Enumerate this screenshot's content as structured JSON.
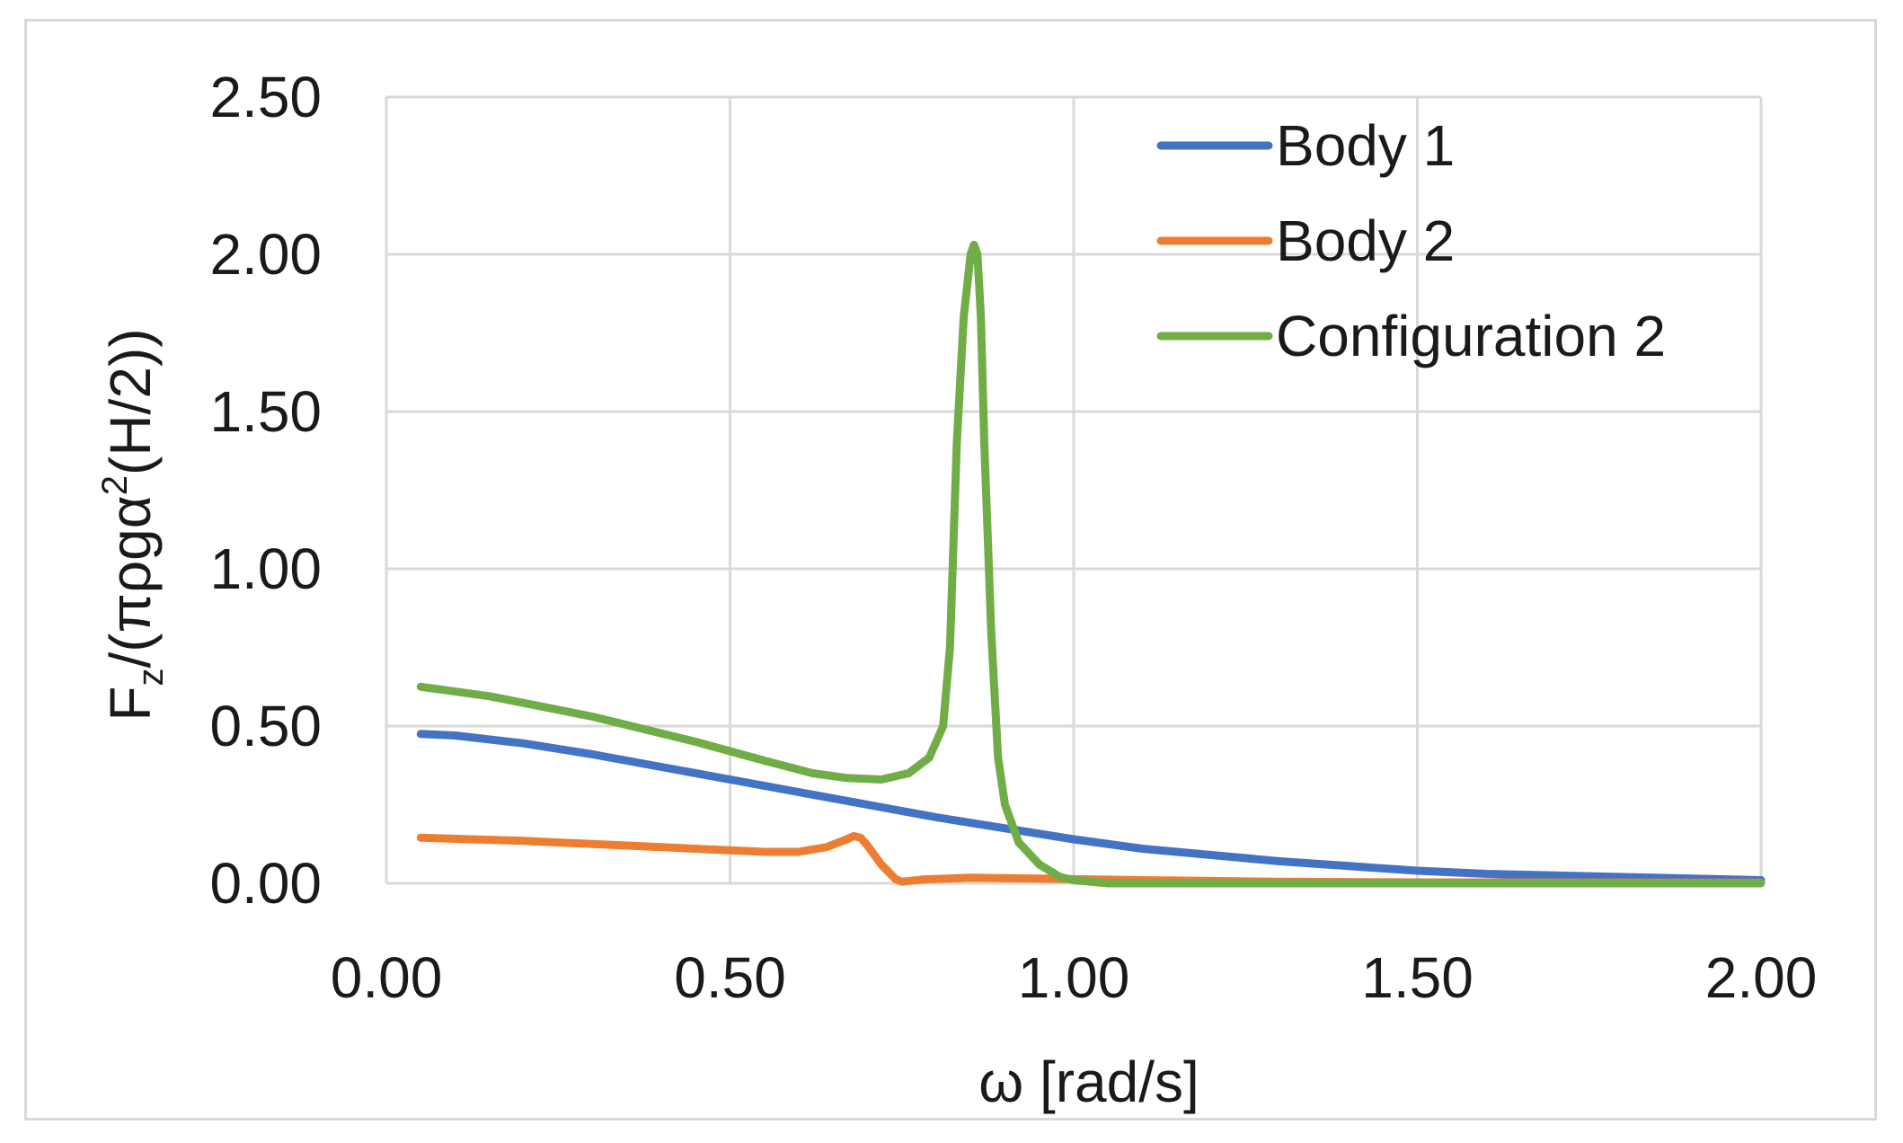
{
  "chart_data": {
    "type": "line",
    "title": "",
    "xlabel": "ω  [rad/s]",
    "ylabel_parts": [
      "F",
      "z",
      "/(πρgα",
      "2",
      "(H/2))"
    ],
    "xlim": [
      0,
      2
    ],
    "ylim": [
      0,
      2.5
    ],
    "x_ticks": [
      0,
      0.5,
      1,
      1.5,
      2
    ],
    "y_ticks": [
      0,
      0.5,
      1,
      1.5,
      2,
      2.5
    ],
    "x_tick_labels": [
      "0.00",
      "0.50",
      "1.00",
      "1.50",
      "2.00"
    ],
    "y_tick_labels": [
      "0.00",
      "0.50",
      "1.00",
      "1.50",
      "2.00",
      "2.50"
    ],
    "grid": true,
    "legend_position": "top-right",
    "series": [
      {
        "name": "Body 1",
        "color": "#4472c4",
        "x": [
          0.05,
          0.1,
          0.2,
          0.3,
          0.4,
          0.5,
          0.6,
          0.7,
          0.8,
          0.9,
          1.0,
          1.1,
          1.2,
          1.3,
          1.4,
          1.5,
          1.6,
          1.7,
          1.8,
          1.9,
          2.0
        ],
        "y": [
          0.475,
          0.47,
          0.445,
          0.41,
          0.37,
          0.33,
          0.29,
          0.25,
          0.21,
          0.175,
          0.14,
          0.11,
          0.09,
          0.07,
          0.055,
          0.04,
          0.03,
          0.025,
          0.02,
          0.015,
          0.01
        ]
      },
      {
        "name": "Body 2",
        "color": "#ed7d31",
        "x": [
          0.05,
          0.2,
          0.4,
          0.55,
          0.6,
          0.64,
          0.67,
          0.68,
          0.69,
          0.7,
          0.72,
          0.74,
          0.75,
          0.78,
          0.85,
          0.95,
          1.1,
          1.3,
          1.5,
          2.0
        ],
        "y": [
          0.145,
          0.135,
          0.115,
          0.1,
          0.1,
          0.115,
          0.14,
          0.15,
          0.145,
          0.12,
          0.06,
          0.015,
          0.005,
          0.012,
          0.018,
          0.015,
          0.01,
          0.005,
          0.003,
          0.002
        ]
      },
      {
        "name": "Configuration 2",
        "color": "#70ad47",
        "x": [
          0.05,
          0.15,
          0.3,
          0.45,
          0.55,
          0.62,
          0.67,
          0.72,
          0.76,
          0.79,
          0.81,
          0.82,
          0.83,
          0.84,
          0.85,
          0.855,
          0.86,
          0.865,
          0.87,
          0.88,
          0.89,
          0.9,
          0.92,
          0.95,
          0.98,
          1.0,
          1.05,
          1.2,
          1.5,
          2.0
        ],
        "y": [
          0.625,
          0.595,
          0.53,
          0.45,
          0.39,
          0.35,
          0.335,
          0.33,
          0.35,
          0.4,
          0.5,
          0.75,
          1.4,
          1.8,
          2.0,
          2.03,
          2.0,
          1.8,
          1.4,
          0.8,
          0.4,
          0.25,
          0.13,
          0.06,
          0.02,
          0.01,
          0.0,
          0.0,
          0.0,
          0.0
        ]
      }
    ]
  }
}
